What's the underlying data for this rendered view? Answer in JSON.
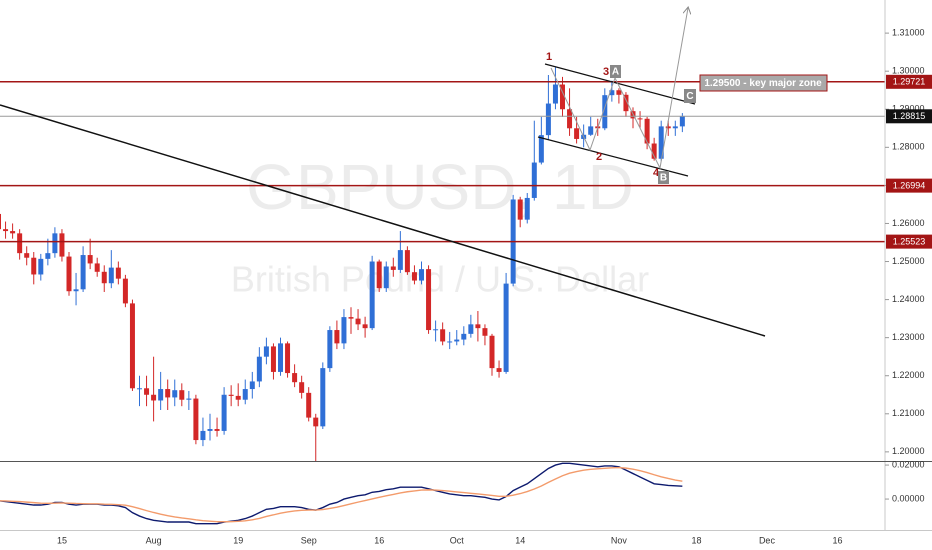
{
  "chart_data": [
    {
      "type": "candlestick",
      "title": "GBPUSD, 1D",
      "subtitle": "British Pound / U.S. Dollar",
      "categories": [
        null,
        null,
        null,
        null,
        null,
        null,
        null,
        null,
        null,
        "15",
        null,
        null,
        null,
        null,
        null,
        null,
        null,
        null,
        null,
        null,
        null,
        null,
        "Aug",
        null,
        null,
        null,
        null,
        null,
        null,
        null,
        null,
        null,
        null,
        null,
        "19",
        null,
        null,
        null,
        null,
        null,
        null,
        null,
        null,
        null,
        "Sep",
        null,
        null,
        null,
        null,
        null,
        null,
        null,
        null,
        null,
        "16",
        null,
        null,
        null,
        null,
        null,
        null,
        null,
        null,
        null,
        null,
        "Oct",
        null,
        null,
        null,
        null,
        null,
        null,
        null,
        null,
        "14",
        null,
        null,
        null,
        null,
        null,
        null,
        null,
        null,
        null,
        null,
        null,
        null,
        null,
        "Nov",
        null,
        null,
        null,
        null,
        null,
        null,
        null,
        null,
        null,
        null,
        "18",
        null,
        null,
        null,
        null,
        null,
        null,
        null,
        null,
        null,
        "Dec",
        null,
        null,
        null,
        null,
        null,
        null,
        null,
        null,
        null,
        "16"
      ],
      "open": [
        1.2625,
        1.2585,
        1.258,
        1.2574,
        1.2522,
        1.251,
        1.2466,
        1.2507,
        1.2522,
        1.2574,
        1.2513,
        1.2422,
        1.2427,
        1.2517,
        1.2495,
        1.2473,
        1.2443,
        1.2484,
        1.2455,
        1.239,
        1.2167,
        1.2167,
        1.215,
        1.2135,
        1.2165,
        1.2143,
        1.2162,
        1.2137,
        1.214,
        1.2031,
        1.2055,
        1.206,
        1.2055,
        1.215,
        1.2147,
        1.2137,
        1.2165,
        1.2185,
        1.225,
        1.2277,
        1.221,
        1.2285,
        1.2207,
        1.2183,
        1.2155,
        1.209,
        1.2067,
        1.222,
        1.232,
        1.2285,
        1.2354,
        1.235,
        1.2335,
        1.2325,
        1.25,
        1.243,
        1.2487,
        1.2478,
        1.253,
        1.2472,
        1.245,
        1.248,
        1.232,
        1.2322,
        1.229,
        1.229,
        1.2295,
        1.231,
        1.2335,
        1.2325,
        1.2305,
        1.222,
        1.221,
        1.2442,
        1.2663,
        1.261,
        1.2667,
        1.276,
        1.2832,
        1.2915,
        1.2965,
        1.29,
        1.285,
        1.2822,
        1.2833,
        1.2855,
        1.285,
        1.2937,
        1.295,
        1.2938,
        1.2895,
        1.2876,
        1.2875,
        1.281,
        1.277,
        1.2855,
        1.285,
        1.2855,
        null,
        null,
        null,
        null,
        null,
        null,
        null,
        null,
        null,
        null,
        null,
        null,
        null,
        null,
        null,
        null,
        null,
        null,
        null,
        null,
        null,
        null
      ],
      "high": [
        1.2645,
        1.2605,
        1.26,
        1.2585,
        1.254,
        1.2525,
        1.252,
        1.256,
        1.259,
        1.2585,
        1.2525,
        1.247,
        1.254,
        1.256,
        1.251,
        1.249,
        1.253,
        1.25,
        1.2465,
        1.24,
        1.22,
        1.22,
        1.225,
        1.221,
        1.219,
        1.219,
        1.218,
        1.216,
        1.215,
        1.209,
        1.21,
        1.209,
        1.217,
        1.2175,
        1.218,
        1.219,
        1.221,
        1.2275,
        1.23,
        1.2285,
        1.23,
        1.229,
        1.223,
        1.22,
        1.217,
        1.21,
        1.2235,
        1.233,
        1.2345,
        1.2375,
        1.238,
        1.2375,
        1.2355,
        1.2515,
        1.2505,
        1.25,
        1.251,
        1.258,
        1.254,
        1.249,
        1.25,
        1.249,
        1.2345,
        1.234,
        1.2315,
        1.232,
        1.233,
        1.236,
        1.237,
        1.2335,
        1.231,
        1.224,
        1.247,
        1.2675,
        1.267,
        1.268,
        1.287,
        1.288,
        1.299,
        1.301,
        1.2985,
        1.2955,
        1.288,
        1.286,
        1.288,
        1.2875,
        1.2955,
        1.2975,
        1.2955,
        1.2945,
        1.2905,
        1.2895,
        1.288,
        1.2825,
        1.287,
        1.287,
        1.287,
        1.289,
        null,
        null,
        null,
        null,
        null,
        null,
        null,
        null,
        null,
        null,
        null,
        null,
        null,
        null,
        null,
        null,
        null,
        null,
        null,
        null,
        null,
        null
      ],
      "low": [
        1.2575,
        1.256,
        1.256,
        1.2505,
        1.249,
        1.244,
        1.245,
        1.249,
        1.251,
        1.25,
        1.241,
        1.2385,
        1.242,
        1.248,
        1.246,
        1.242,
        1.243,
        1.244,
        1.238,
        1.216,
        1.212,
        1.212,
        1.208,
        1.211,
        1.211,
        1.212,
        1.212,
        1.211,
        1.202,
        1.2015,
        1.203,
        1.204,
        1.2045,
        1.212,
        1.212,
        1.2125,
        1.214,
        1.217,
        1.223,
        1.219,
        1.22,
        1.2195,
        1.217,
        1.214,
        1.208,
        1.1958,
        1.206,
        1.221,
        1.227,
        1.227,
        1.231,
        1.232,
        1.23,
        1.232,
        1.242,
        1.242,
        1.246,
        1.247,
        1.2465,
        1.244,
        1.244,
        1.231,
        1.229,
        1.228,
        1.227,
        1.228,
        1.228,
        1.23,
        1.229,
        1.228,
        1.22,
        1.2195,
        1.2205,
        1.2435,
        1.259,
        1.26,
        1.266,
        1.2755,
        1.282,
        1.29,
        1.288,
        1.283,
        1.281,
        1.28,
        1.283,
        1.283,
        1.2845,
        1.292,
        1.2915,
        1.288,
        1.285,
        1.285,
        1.2795,
        1.2765,
        1.2765,
        1.283,
        1.283,
        1.284,
        null,
        null,
        null,
        null,
        null,
        null,
        null,
        null,
        null,
        null,
        null,
        null,
        null,
        null,
        null,
        null,
        null,
        null,
        null,
        null,
        null,
        null
      ],
      "close": [
        1.2585,
        1.258,
        1.2574,
        1.2522,
        1.251,
        1.2466,
        1.2507,
        1.2522,
        1.2574,
        1.2513,
        1.2422,
        1.2427,
        1.2517,
        1.2495,
        1.2473,
        1.2443,
        1.2484,
        1.2455,
        1.239,
        1.2167,
        1.2167,
        1.215,
        1.2135,
        1.2165,
        1.2143,
        1.2162,
        1.2137,
        1.214,
        1.2031,
        1.2055,
        1.206,
        1.2055,
        1.215,
        1.2147,
        1.2137,
        1.2165,
        1.2185,
        1.225,
        1.2277,
        1.221,
        1.2285,
        1.2207,
        1.2183,
        1.2155,
        1.209,
        1.2067,
        1.222,
        1.232,
        1.2285,
        1.2354,
        1.235,
        1.2335,
        1.2325,
        1.25,
        1.243,
        1.2487,
        1.2478,
        1.253,
        1.2472,
        1.245,
        1.248,
        1.232,
        1.2322,
        1.229,
        1.229,
        1.2295,
        1.231,
        1.2335,
        1.2325,
        1.2305,
        1.222,
        1.221,
        1.2442,
        1.2663,
        1.261,
        1.2667,
        1.276,
        1.2832,
        1.2915,
        1.2965,
        1.29,
        1.285,
        1.2822,
        1.2833,
        1.2855,
        1.285,
        1.2937,
        1.295,
        1.2938,
        1.2895,
        1.2876,
        1.2875,
        1.281,
        1.277,
        1.2855,
        1.285,
        1.2855,
        1.28815,
        null,
        null,
        null,
        null,
        null,
        null,
        null,
        null,
        null,
        null,
        null,
        null,
        null,
        null,
        null,
        null,
        null,
        null,
        null,
        null,
        null,
        null
      ],
      "up_color": "#2f6fd6",
      "down_color": "#d32727",
      "ylim": [
        1.1976,
        1.3187
      ],
      "yticks": [
        {
          "value": 1.2,
          "label": "1.20000"
        },
        {
          "value": 1.21,
          "label": "1.21000"
        },
        {
          "value": 1.22,
          "label": "1.22000"
        },
        {
          "value": 1.23,
          "label": "1.23000"
        },
        {
          "value": 1.24,
          "label": "1.24000"
        },
        {
          "value": 1.25,
          "label": "1.25000"
        },
        {
          "value": 1.26,
          "label": "1.26000"
        },
        {
          "value": 1.27,
          "label": "1.27000"
        },
        {
          "value": 1.28,
          "label": "1.28000"
        },
        {
          "value": 1.29,
          "label": "1.29000"
        },
        {
          "value": 1.3,
          "label": "1.30000"
        },
        {
          "value": 1.31,
          "label": "1.31000"
        }
      ],
      "levels": [
        1.29721,
        1.26994,
        1.25523
      ],
      "level_color": "#a31515",
      "last_price": 1.28815,
      "annotations": [
        "1.29500 - key major zone",
        "1",
        "2",
        "3",
        "4",
        "A",
        "B",
        "C"
      ]
    },
    {
      "type": "line",
      "ylim": [
        -0.0182,
        0.0218
      ],
      "yticks": [
        {
          "value": 0.02,
          "label": "0.02000"
        },
        {
          "value": 0,
          "label": "0.00000"
        }
      ],
      "series": [
        {
          "color": "#0d1a6e",
          "values": [
            -0.001,
            -0.0015,
            -0.002,
            -0.0025,
            -0.003,
            -0.0035,
            -0.0035,
            -0.003,
            -0.002,
            -0.002,
            -0.003,
            -0.0035,
            -0.003,
            -0.003,
            -0.003,
            -0.0035,
            -0.0035,
            -0.004,
            -0.005,
            -0.008,
            -0.01,
            -0.0115,
            -0.0125,
            -0.013,
            -0.0135,
            -0.0135,
            -0.0135,
            -0.0135,
            -0.0145,
            -0.0145,
            -0.0145,
            -0.0145,
            -0.0135,
            -0.013,
            -0.0125,
            -0.0115,
            -0.01,
            -0.008,
            -0.006,
            -0.0055,
            -0.0045,
            -0.0045,
            -0.0045,
            -0.005,
            -0.006,
            -0.0065,
            -0.005,
            -0.003,
            -0.002,
            0.0,
            0.001,
            0.002,
            0.0025,
            0.004,
            0.0045,
            0.0055,
            0.006,
            0.007,
            0.007,
            0.007,
            0.007,
            0.006,
            0.005,
            0.004,
            0.003,
            0.0025,
            0.002,
            0.002,
            0.0015,
            0.001,
            0.0,
            -0.0005,
            0.0015,
            0.005,
            0.007,
            0.009,
            0.012,
            0.015,
            0.018,
            0.02,
            0.021,
            0.021,
            0.0205,
            0.02,
            0.0195,
            0.019,
            0.0195,
            0.0195,
            0.019,
            0.017,
            0.015,
            0.013,
            0.011,
            0.009,
            0.0085,
            0.008,
            0.0078,
            0.0076,
            null,
            null,
            null,
            null,
            null,
            null,
            null,
            null,
            null,
            null,
            null,
            null,
            null,
            null,
            null,
            null,
            null,
            null,
            null,
            null,
            null,
            null
          ]
        },
        {
          "color": "#f39b6b",
          "values": [
            -0.001,
            -0.0011,
            -0.0013,
            -0.0015,
            -0.0018,
            -0.0021,
            -0.0024,
            -0.0025,
            -0.0024,
            -0.0023,
            -0.0024,
            -0.0026,
            -0.0027,
            -0.0028,
            -0.0028,
            -0.003,
            -0.0031,
            -0.0033,
            -0.0036,
            -0.0045,
            -0.0056,
            -0.0068,
            -0.0079,
            -0.0089,
            -0.0098,
            -0.0105,
            -0.0111,
            -0.0116,
            -0.0122,
            -0.0127,
            -0.013,
            -0.0133,
            -0.0133,
            -0.0133,
            -0.0131,
            -0.0128,
            -0.0122,
            -0.0114,
            -0.0102,
            -0.0093,
            -0.0083,
            -0.0076,
            -0.007,
            -0.0066,
            -0.0065,
            -0.0065,
            -0.0062,
            -0.0055,
            -0.0048,
            -0.0038,
            -0.0028,
            -0.0018,
            -0.0009,
            0.0001,
            0.001,
            0.0019,
            0.0027,
            0.0036,
            0.0043,
            0.0048,
            0.0053,
            0.0054,
            0.0053,
            0.005,
            0.0046,
            0.0042,
            0.0038,
            0.0034,
            0.003,
            0.0026,
            0.0021,
            0.0016,
            0.0016,
            0.0023,
            0.0032,
            0.0044,
            0.0059,
            0.0077,
            0.0098,
            0.0118,
            0.0137,
            0.0152,
            0.0162,
            0.017,
            0.0175,
            0.0178,
            0.0181,
            0.0184,
            0.0185,
            0.0182,
            0.0176,
            0.0167,
            0.0156,
            0.0143,
            0.0131,
            0.0121,
            0.0112,
            0.0105,
            null,
            null,
            null,
            null,
            null,
            null,
            null,
            null,
            null,
            null,
            null,
            null,
            null,
            null,
            null,
            null,
            null,
            null,
            null,
            null,
            null,
            null
          ]
        }
      ]
    }
  ]
}
